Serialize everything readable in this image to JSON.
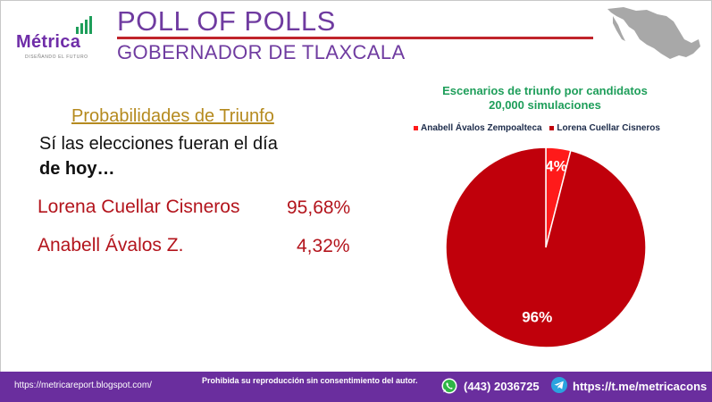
{
  "brand": {
    "name": "Métrica",
    "tagline": "DISEÑANDO EL FUTURO",
    "accent_color": "#6f2da8",
    "bar_color": "#1e9e5a"
  },
  "header": {
    "title": "POLL OF POLLS",
    "subtitle": "GOBERNADOR DE TLAXCALA",
    "rule_color": "#c0242b",
    "map_icon": "mexico-map-icon"
  },
  "probabilities": {
    "heading": "Probabilidades de Triunfo",
    "line1": "Sí las elecciones fueran el día",
    "line2": "de hoy…",
    "candidates": [
      {
        "name": "Lorena Cuellar Cisneros",
        "value": "95,68%"
      },
      {
        "name": "Anabell Ávalos Z.",
        "value": "4,32%"
      }
    ]
  },
  "chart_data": {
    "type": "pie",
    "title": "Escenarios de triunfo por candidatos",
    "subtitle": "20,000 simulaciones",
    "legend_position": "top",
    "slices": [
      {
        "label": "Anabell Ávalos Zempoalteca",
        "value": 4,
        "display": "4%",
        "color": "#ff1a1a"
      },
      {
        "label": "Lorena Cuellar Cisneros",
        "value": 96,
        "display": "96%",
        "color": "#c0000b"
      }
    ]
  },
  "footer": {
    "url": "https://metricareport.blogspot.com/",
    "note": "Prohibida su reproducción sin consentimiento del autor.",
    "phone": "(443)  2036725",
    "telegram": "https://t.me/metricacons",
    "background": "#6a2e9e",
    "whatsapp_icon": "whatsapp-icon",
    "telegram_icon": "telegram-icon"
  }
}
